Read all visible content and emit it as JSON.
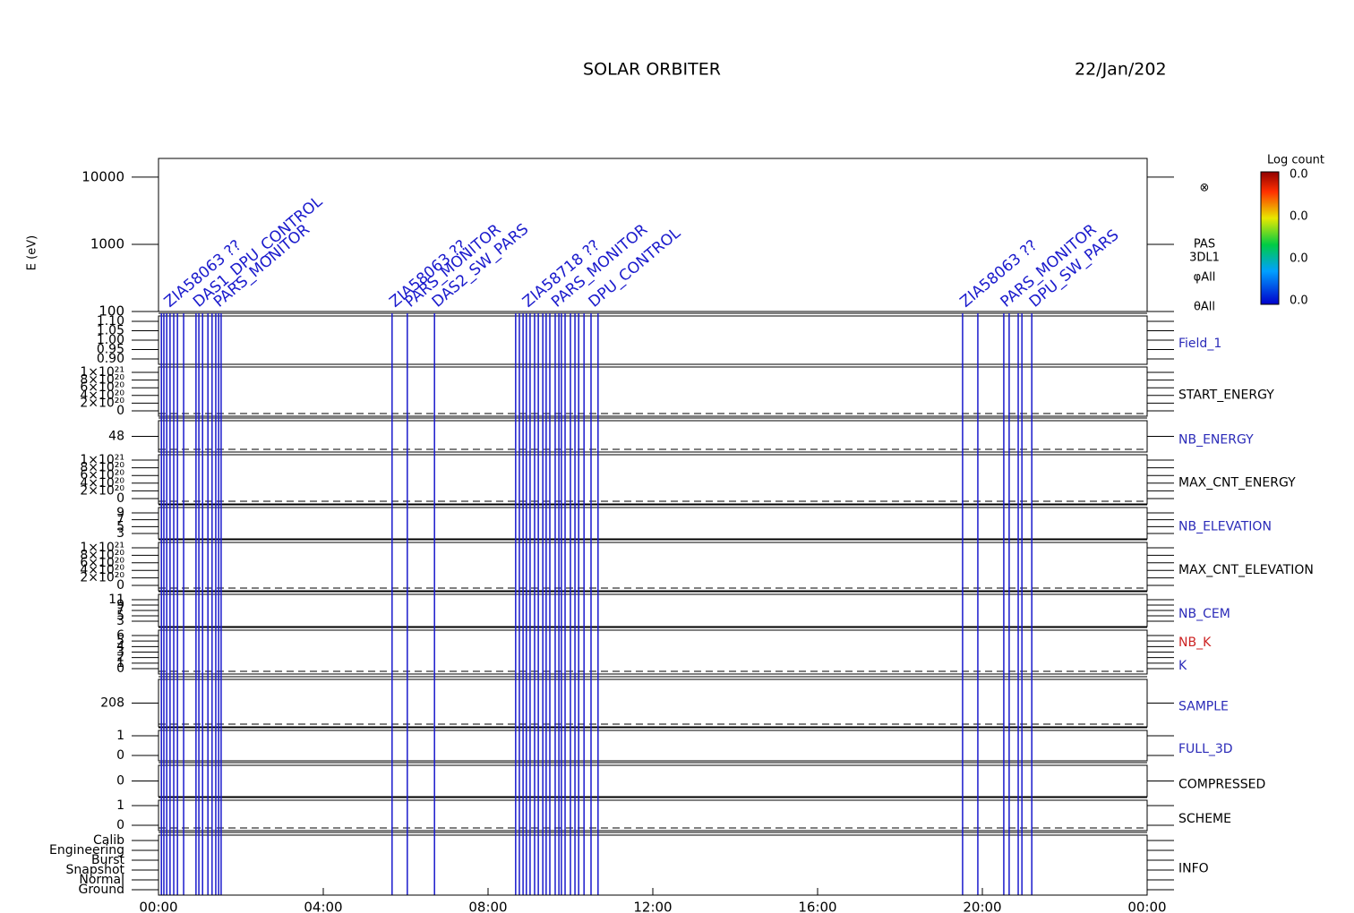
{
  "chart_data": {
    "type": "event-panels",
    "title": "SOLAR ORBITER",
    "date": "22/Jan/202",
    "xlim": [
      0,
      24
    ],
    "xticks": [
      {
        "value": 0,
        "label": "00:00"
      },
      {
        "value": 4,
        "label": "04:00"
      },
      {
        "value": 8,
        "label": "08:00"
      },
      {
        "value": 12,
        "label": "12:00"
      },
      {
        "value": 16,
        "label": "16:00"
      },
      {
        "value": 20,
        "label": "20:00"
      },
      {
        "value": 24,
        "label": "00:00"
      }
    ],
    "event_color": "#1a1acc",
    "events": [
      0.07,
      0.13,
      0.2,
      0.28,
      0.37,
      0.46,
      0.61,
      0.91,
      0.98,
      1.07,
      1.2,
      1.3,
      1.39,
      1.46,
      1.52,
      5.67,
      6.04,
      6.7,
      8.67,
      8.76,
      8.85,
      8.93,
      9.02,
      9.13,
      9.22,
      9.33,
      9.41,
      9.5,
      9.63,
      9.72,
      9.78,
      9.87,
      10.0,
      10.11,
      10.2,
      10.33,
      10.5,
      10.67,
      19.52,
      19.89,
      20.52,
      20.65,
      20.87,
      20.96,
      21.2
    ],
    "annotations": [
      {
        "x": 0.2,
        "text": "ZIA58063 ??"
      },
      {
        "x": 0.9,
        "text": "DAS1_DPU_CONTROL"
      },
      {
        "x": 1.4,
        "text": "PARS_MONITOR"
      },
      {
        "x": 5.67,
        "text": "ZIA58063 ??"
      },
      {
        "x": 6.04,
        "text": "PARS_MONITOR"
      },
      {
        "x": 6.7,
        "text": "DAS2_SW_PARS"
      },
      {
        "x": 8.9,
        "text": "ZIA58718 ??"
      },
      {
        "x": 9.6,
        "text": "PARS_MONITOR"
      },
      {
        "x": 10.5,
        "text": "DPU_CONTROL"
      },
      {
        "x": 19.52,
        "text": "ZIA58063 ??"
      },
      {
        "x": 20.5,
        "text": "PARS_MONITOR"
      },
      {
        "x": 21.2,
        "text": "DPU_SW_PARS"
      }
    ],
    "spectrogram": {
      "ylabel": "E (eV)",
      "log": true,
      "ylim": [
        100,
        19000
      ],
      "yticks": [
        100,
        1000,
        10000
      ],
      "side_labels": [
        "PAS",
        "3DL1",
        "φAll",
        "θAll"
      ],
      "colorbar_title": "Log count",
      "colorbar_ticks": [
        "0.0",
        "0.0",
        "0.0",
        "0.0"
      ]
    },
    "panels": [
      {
        "labels": [
          {
            "text": "Field_1",
            "color": "#2a2ab8"
          }
        ],
        "ticks": [
          "1.10",
          "1.05",
          "1.00",
          "0.95",
          "0.90"
        ],
        "zero_line": false
      },
      {
        "labels": [
          {
            "text": "START_ENERGY",
            "color": "#000000"
          }
        ],
        "ticks": [
          "1×10²¹",
          "8×10²⁰",
          "6×10²⁰",
          "4×10²⁰",
          "2×10²⁰",
          "0"
        ],
        "zero_line": true
      },
      {
        "labels": [
          {
            "text": "NB_ENERGY",
            "color": "#2a2ab8"
          }
        ],
        "ticks": [
          "48"
        ],
        "zero_line": true
      },
      {
        "labels": [
          {
            "text": "MAX_CNT_ENERGY",
            "color": "#000000"
          }
        ],
        "ticks": [
          "1×10²¹",
          "8×10²⁰",
          "6×10²⁰",
          "4×10²⁰",
          "2×10²⁰",
          "0"
        ],
        "zero_line": true
      },
      {
        "labels": [
          {
            "text": "NB_ELEVATION",
            "color": "#2a2ab8"
          }
        ],
        "ticks": [
          "9",
          "7",
          "5",
          "3"
        ],
        "zero_line": false
      },
      {
        "labels": [
          {
            "text": "MAX_CNT_ELEVATION",
            "color": "#000000"
          }
        ],
        "ticks": [
          "1×10²¹",
          "8×10²⁰",
          "6×10²⁰",
          "4×10²⁰",
          "2×10²⁰",
          "0"
        ],
        "zero_line": true
      },
      {
        "labels": [
          {
            "text": "NB_CEM",
            "color": "#2a2ab8"
          }
        ],
        "ticks": [
          "11",
          "9",
          "7",
          "5",
          "3"
        ],
        "zero_line": false
      },
      {
        "labels": [
          {
            "text": "NB_K",
            "color": "#cc2222"
          },
          {
            "text": "K",
            "color": "#2a2ab8"
          }
        ],
        "ticks": [
          "6",
          "5",
          "4",
          "3",
          "2",
          "1",
          "0"
        ],
        "zero_line": true
      },
      {
        "labels": [
          {
            "text": "SAMPLE",
            "color": "#2a2ab8"
          }
        ],
        "ticks": [
          "208"
        ],
        "zero_line": true
      },
      {
        "labels": [
          {
            "text": "FULL_3D",
            "color": "#2a2ab8"
          }
        ],
        "ticks": [
          "1",
          "0"
        ],
        "zero_line": false
      },
      {
        "labels": [
          {
            "text": "COMPRESSED",
            "color": "#000000"
          }
        ],
        "ticks": [
          "0"
        ],
        "zero_line": false
      },
      {
        "labels": [
          {
            "text": "SCHEME",
            "color": "#000000"
          }
        ],
        "ticks": [
          "1",
          "0"
        ],
        "zero_line": true
      },
      {
        "labels": [
          {
            "text": "INFO",
            "color": "#000000"
          }
        ],
        "ticks": [
          "Calib",
          "Engineering",
          "Burst",
          "Snapshot",
          "Normal",
          "Ground"
        ],
        "zero_line": false
      }
    ]
  }
}
